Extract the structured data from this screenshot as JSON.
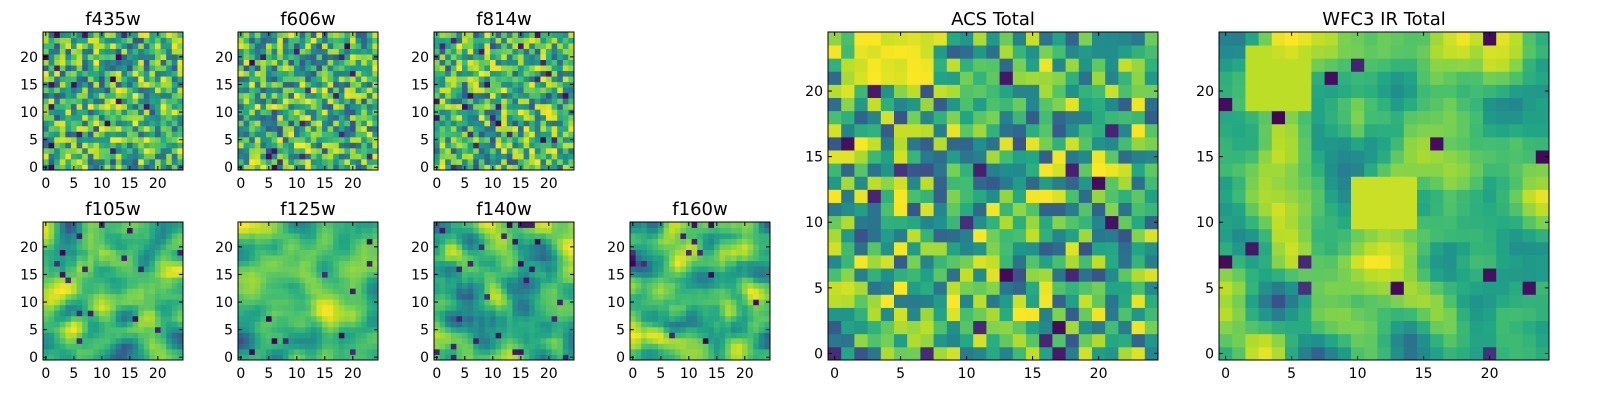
{
  "chart_data": [
    {
      "type": "heatmap",
      "title": "f435w",
      "xlim": [
        0,
        24
      ],
      "ylim": [
        0,
        24
      ],
      "x_ticks": [
        0,
        5,
        10,
        15,
        20
      ],
      "y_ticks": [
        0,
        5,
        10,
        15,
        20
      ],
      "grid_size": 25,
      "colormap": "viridis",
      "grid": false,
      "pattern": "noise"
    },
    {
      "type": "heatmap",
      "title": "f606w",
      "xlim": [
        0,
        24
      ],
      "ylim": [
        0,
        24
      ],
      "x_ticks": [
        0,
        5,
        10,
        15,
        20
      ],
      "y_ticks": [
        0,
        5,
        10,
        15,
        20
      ],
      "grid_size": 25,
      "colormap": "viridis",
      "grid": false,
      "pattern": "noise"
    },
    {
      "type": "heatmap",
      "title": "f814w",
      "xlim": [
        0,
        24
      ],
      "ylim": [
        0,
        24
      ],
      "x_ticks": [
        0,
        5,
        10,
        15,
        20
      ],
      "y_ticks": [
        0,
        5,
        10,
        15,
        20
      ],
      "grid_size": 25,
      "colormap": "viridis",
      "grid": false,
      "pattern": "noise"
    },
    {
      "type": "heatmap",
      "title": "f105w",
      "xlim": [
        0,
        24
      ],
      "ylim": [
        0,
        24
      ],
      "x_ticks": [
        0,
        5,
        10,
        15,
        20
      ],
      "y_ticks": [
        0,
        5,
        10,
        15,
        20
      ],
      "grid_size": 25,
      "colormap": "viridis",
      "grid": false,
      "pattern": "smooth"
    },
    {
      "type": "heatmap",
      "title": "f125w",
      "xlim": [
        0,
        24
      ],
      "ylim": [
        0,
        24
      ],
      "x_ticks": [
        0,
        5,
        10,
        15,
        20
      ],
      "y_ticks": [
        0,
        5,
        10,
        15,
        20
      ],
      "grid_size": 25,
      "colormap": "viridis",
      "grid": false,
      "pattern": "smooth"
    },
    {
      "type": "heatmap",
      "title": "f140w",
      "xlim": [
        0,
        24
      ],
      "ylim": [
        0,
        24
      ],
      "x_ticks": [
        0,
        5,
        10,
        15,
        20
      ],
      "y_ticks": [
        0,
        5,
        10,
        15,
        20
      ],
      "grid_size": 25,
      "colormap": "viridis",
      "grid": false,
      "pattern": "smooth"
    },
    {
      "type": "heatmap",
      "title": "f160w",
      "xlim": [
        0,
        24
      ],
      "ylim": [
        0,
        24
      ],
      "x_ticks": [
        0,
        5,
        10,
        15,
        20
      ],
      "y_ticks": [
        0,
        5,
        10,
        15,
        20
      ],
      "grid_size": 25,
      "colormap": "viridis",
      "grid": false,
      "pattern": "smooth"
    },
    {
      "type": "heatmap",
      "title": "ACS Total",
      "xlim": [
        0,
        24
      ],
      "ylim": [
        0,
        24
      ],
      "x_ticks": [
        0,
        5,
        10,
        15,
        20
      ],
      "y_ticks": [
        0,
        5,
        10,
        15,
        20
      ],
      "grid_size": 25,
      "colormap": "viridis",
      "grid": false,
      "pattern": "noise-bright-topleft"
    },
    {
      "type": "heatmap",
      "title": "WFC3 IR Total",
      "xlim": [
        0,
        24
      ],
      "ylim": [
        0,
        24
      ],
      "x_ticks": [
        0,
        5,
        10,
        15,
        20
      ],
      "y_ticks": [
        0,
        5,
        10,
        15,
        20
      ],
      "grid_size": 25,
      "colormap": "viridis",
      "grid": false,
      "pattern": "smooth-bright-center"
    }
  ]
}
